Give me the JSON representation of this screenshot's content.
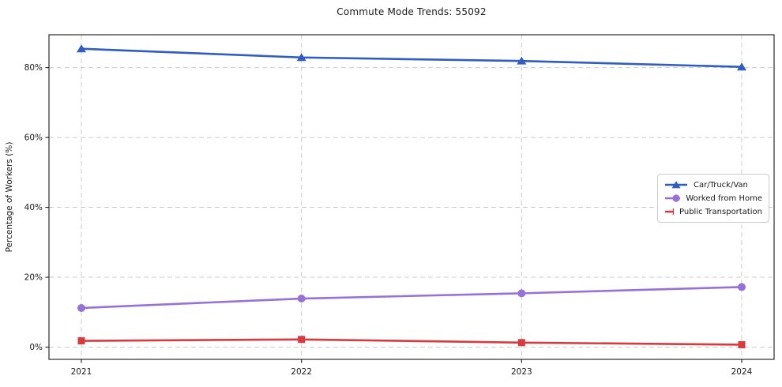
{
  "chart_data": {
    "type": "line",
    "title": "Commute Mode Trends: 55092",
    "xlabel": "",
    "ylabel": "Percentage of Workers (%)",
    "categories": [
      "2021",
      "2022",
      "2023",
      "2024"
    ],
    "series": [
      {
        "name": "Car/Truck/Van",
        "color": "#2f5dc0",
        "marker": "triangle",
        "values": [
          85.4,
          82.9,
          81.9,
          80.2
        ]
      },
      {
        "name": "Worked from Home",
        "color": "#9770d8",
        "marker": "circle",
        "values": [
          11.2,
          13.9,
          15.4,
          17.2
        ]
      },
      {
        "name": "Public Transportation",
        "color": "#d93a3e",
        "marker": "square",
        "values": [
          1.8,
          2.2,
          1.3,
          0.7
        ]
      }
    ],
    "yticks": [
      0,
      20,
      40,
      60,
      80
    ],
    "ytick_labels": [
      "0%",
      "20%",
      "40%",
      "60%",
      "80%"
    ],
    "ylim": [
      -3.5,
      89.4
    ],
    "grid": true,
    "grid_style": "dashed",
    "grid_color": "#cccccc",
    "spine_color": "#2b2b2b",
    "background_color": "#ffffff",
    "legend_position": "center-right"
  }
}
